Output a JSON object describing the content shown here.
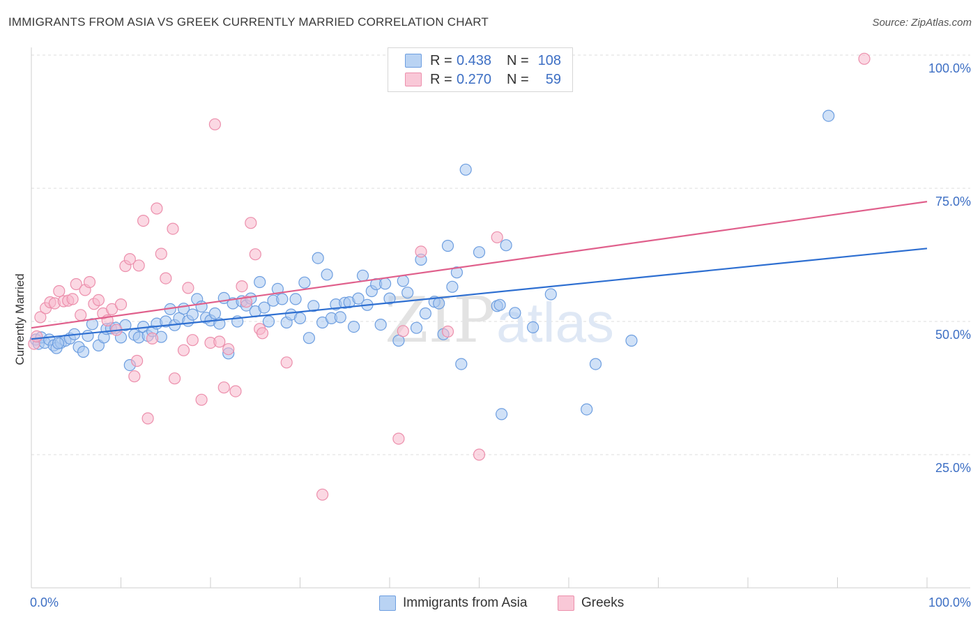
{
  "header": {
    "title": "IMMIGRANTS FROM ASIA VS GREEK CURRENTLY MARRIED CORRELATION CHART",
    "source": "Source: ZipAtlas.com"
  },
  "legend_top": {
    "rows": [
      {
        "r_label": "R =",
        "r_value": "0.438",
        "n_label": "N =",
        "n_value": "108"
      },
      {
        "r_label": "R =",
        "r_value": "0.270",
        "n_label": "N =",
        "n_value": "59"
      }
    ]
  },
  "legend_bottom": {
    "items": [
      "Immigrants from Asia",
      "Greeks"
    ]
  },
  "watermark": {
    "zip": "ZIP",
    "atlas": "atlas"
  },
  "colors": {
    "blue_fill": "#a9c8f0",
    "blue_stroke": "#6d9ee0",
    "blue_line": "#2e6fd1",
    "pink_fill": "#f7b8cc",
    "pink_stroke": "#ec8fac",
    "pink_line": "#e0608c",
    "tick_text": "#3d6fc4"
  },
  "chart_data": {
    "type": "scatter",
    "title": "IMMIGRANTS FROM ASIA VS GREEK CURRENTLY MARRIED CORRELATION CHART",
    "xlabel": "",
    "ylabel": "Currently Married",
    "xlim": [
      0,
      100
    ],
    "ylim": [
      0,
      100
    ],
    "x_tick_labels": [
      "0.0%",
      "100.0%"
    ],
    "y_ticks": [
      25,
      50,
      75,
      100
    ],
    "y_tick_labels": [
      "25.0%",
      "50.0%",
      "75.0%",
      "100.0%"
    ],
    "grid": true,
    "legend_position": "top-center",
    "series": [
      {
        "name": "Immigrants from Asia",
        "R": 0.438,
        "N": 108,
        "trendline": {
          "x": [
            0,
            100
          ],
          "y": [
            46.7,
            63.7
          ]
        },
        "points": [
          [
            0.5,
            46.6
          ],
          [
            0.8,
            45.8
          ],
          [
            1.1,
            47
          ],
          [
            1.5,
            46
          ],
          [
            2,
            46.6
          ],
          [
            2.5,
            45.5
          ],
          [
            2.8,
            45
          ],
          [
            3.3,
            46
          ],
          [
            3.8,
            46.4
          ],
          [
            4.3,
            46.8
          ],
          [
            4.8,
            47.6
          ],
          [
            5.3,
            45.2
          ],
          [
            5.8,
            44.3
          ],
          [
            6.3,
            47.3
          ],
          [
            6.8,
            49.5
          ],
          [
            7.5,
            45.5
          ],
          [
            8.1,
            47
          ],
          [
            8.4,
            48.6
          ],
          [
            8.9,
            48.7
          ],
          [
            9.4,
            48.8
          ],
          [
            10,
            47
          ],
          [
            10.5,
            49.3
          ],
          [
            11,
            41.8
          ],
          [
            11.5,
            47.5
          ],
          [
            12,
            47
          ],
          [
            12.5,
            49
          ],
          [
            13,
            47.3
          ],
          [
            13.5,
            48.2
          ],
          [
            14,
            49.6
          ],
          [
            14.5,
            47.1
          ],
          [
            15,
            50
          ],
          [
            15.5,
            52.3
          ],
          [
            16,
            49.3
          ],
          [
            16.5,
            50.6
          ],
          [
            17,
            52.4
          ],
          [
            17.5,
            50.1
          ],
          [
            18,
            51.3
          ],
          [
            18.5,
            54.2
          ],
          [
            19,
            52.8
          ],
          [
            19.5,
            50.7
          ],
          [
            20,
            50.2
          ],
          [
            20.5,
            51.5
          ],
          [
            21,
            49.6
          ],
          [
            21.5,
            54.4
          ],
          [
            22,
            44
          ],
          [
            22.5,
            53.4
          ],
          [
            23,
            50
          ],
          [
            23.5,
            53.8
          ],
          [
            24,
            53
          ],
          [
            24.5,
            54.3
          ],
          [
            25,
            51.9
          ],
          [
            25.5,
            57.4
          ],
          [
            26,
            52.6
          ],
          [
            26.5,
            50
          ],
          [
            27,
            53.9
          ],
          [
            27.5,
            56.1
          ],
          [
            28,
            54.2
          ],
          [
            28.5,
            49.8
          ],
          [
            29,
            51.3
          ],
          [
            29.5,
            54.2
          ],
          [
            30,
            50.6
          ],
          [
            30.5,
            57.3
          ],
          [
            31,
            46.9
          ],
          [
            31.5,
            52.9
          ],
          [
            32,
            61.9
          ],
          [
            32.5,
            49.8
          ],
          [
            33,
            58.8
          ],
          [
            33.5,
            50.6
          ],
          [
            34,
            53.2
          ],
          [
            34.5,
            50.8
          ],
          [
            35,
            53.5
          ],
          [
            35.5,
            53.6
          ],
          [
            36,
            49
          ],
          [
            36.5,
            54.3
          ],
          [
            37,
            58.6
          ],
          [
            37.5,
            53.1
          ],
          [
            38,
            55.7
          ],
          [
            38.5,
            57
          ],
          [
            39,
            49.4
          ],
          [
            39.5,
            57.1
          ],
          [
            40,
            54.3
          ],
          [
            41,
            46.4
          ],
          [
            41.5,
            57.6
          ],
          [
            42,
            55.4
          ],
          [
            43,
            48.8
          ],
          [
            43.5,
            61.6
          ],
          [
            44,
            51.5
          ],
          [
            45,
            53.7
          ],
          [
            45.5,
            53.4
          ],
          [
            46,
            47.6
          ],
          [
            46.5,
            64.2
          ],
          [
            47,
            56.5
          ],
          [
            47.5,
            59.2
          ],
          [
            48,
            42
          ],
          [
            48.5,
            78.5
          ],
          [
            50,
            63
          ],
          [
            52,
            52.9
          ],
          [
            52.5,
            32.6
          ],
          [
            53,
            64.3
          ],
          [
            54,
            51.6
          ],
          [
            56,
            48.9
          ],
          [
            58,
            55.1
          ],
          [
            62,
            33.5
          ],
          [
            63,
            42
          ],
          [
            67,
            46.4
          ],
          [
            89,
            88.6
          ],
          [
            52.3,
            53.1
          ],
          [
            3,
            45.9
          ]
        ]
      },
      {
        "name": "Greeks",
        "R": 0.27,
        "N": 59,
        "trendline": {
          "x": [
            0,
            100
          ],
          "y": [
            48.8,
            72.5
          ]
        },
        "points": [
          [
            0.3,
            45.8
          ],
          [
            0.6,
            47.2
          ],
          [
            1,
            50.8
          ],
          [
            1.6,
            52.5
          ],
          [
            2.1,
            53.6
          ],
          [
            2.6,
            53.4
          ],
          [
            3.1,
            55.7
          ],
          [
            3.6,
            53.8
          ],
          [
            4.1,
            53.9
          ],
          [
            4.6,
            54.2
          ],
          [
            5,
            57
          ],
          [
            5.5,
            51.2
          ],
          [
            6,
            55.9
          ],
          [
            6.5,
            57.4
          ],
          [
            7,
            53.3
          ],
          [
            7.5,
            54
          ],
          [
            8,
            51.5
          ],
          [
            8.5,
            50.2
          ],
          [
            9,
            52.3
          ],
          [
            9.5,
            48.4
          ],
          [
            10,
            53.2
          ],
          [
            10.5,
            60.4
          ],
          [
            11,
            61.7
          ],
          [
            11.5,
            39.7
          ],
          [
            11.8,
            42.6
          ],
          [
            12,
            60.5
          ],
          [
            12.5,
            68.9
          ],
          [
            13,
            31.8
          ],
          [
            13.5,
            46.8
          ],
          [
            14,
            71.2
          ],
          [
            14.5,
            62.7
          ],
          [
            15,
            58.1
          ],
          [
            15.8,
            67.4
          ],
          [
            16,
            39.3
          ],
          [
            17,
            44.6
          ],
          [
            17.5,
            56.3
          ],
          [
            18,
            46.5
          ],
          [
            19,
            35.3
          ],
          [
            20,
            46
          ],
          [
            20.5,
            87
          ],
          [
            21,
            46.2
          ],
          [
            21.5,
            37.6
          ],
          [
            22,
            44.8
          ],
          [
            22.8,
            36.9
          ],
          [
            23.5,
            56.6
          ],
          [
            24,
            53.7
          ],
          [
            24.5,
            68.5
          ],
          [
            25,
            62.6
          ],
          [
            25.5,
            48.6
          ],
          [
            25.8,
            47.8
          ],
          [
            28.5,
            42.3
          ],
          [
            32.5,
            17.5
          ],
          [
            41,
            28
          ],
          [
            41.5,
            48.2
          ],
          [
            43.5,
            63.1
          ],
          [
            46.5,
            48.1
          ],
          [
            50,
            25
          ],
          [
            52,
            65.8
          ],
          [
            93,
            99.3
          ]
        ]
      }
    ]
  }
}
